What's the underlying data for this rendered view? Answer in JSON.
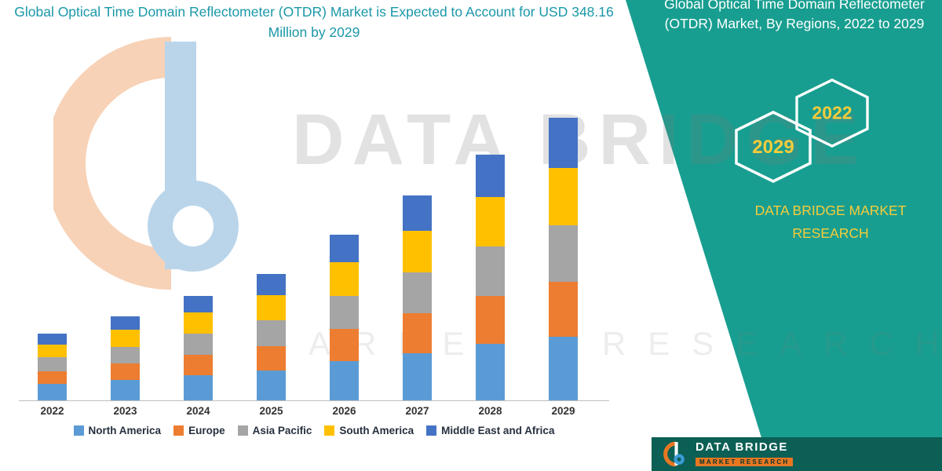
{
  "header": {
    "title": "Global Optical Time Domain Reflectometer (OTDR) Market is Expected to Account for USD 348.16 Million by 2029"
  },
  "panel": {
    "title": "Global Optical Time Domain Reflectometer (OTDR) Market, By Regions, 2022 to 2029",
    "hexagons": [
      {
        "year": "2029"
      },
      {
        "year": "2022"
      }
    ],
    "brand": "DATA BRIDGE MARKET RESEARCH",
    "colors": {
      "panel_bg": "#189E90",
      "footer_bg": "#0B5F55",
      "year_text": "#F5CC3B",
      "title_text": "#FFFFFF"
    }
  },
  "footer": {
    "brand_name": "DATA BRIDGE",
    "brand_sub": "MARKET RESEARCH"
  },
  "watermark": {
    "line1": "DATA BRIDGE",
    "line2": "MARKET RESEARCH"
  },
  "chart_data": {
    "type": "bar",
    "stacked": true,
    "title": "Global Optical Time Domain Reflectometer (OTDR) Market is Expected to Account for USD 348.16 Million by 2029",
    "unit": "USD Million",
    "categories": [
      "2022",
      "2023",
      "2024",
      "2025",
      "2026",
      "2027",
      "2028",
      "2029"
    ],
    "series": [
      {
        "name": "North America",
        "color": "#5B9BD5",
        "values": [
          20,
          25,
          31,
          37,
          48,
          58,
          70,
          78
        ]
      },
      {
        "name": "Europe",
        "color": "#ED7D31",
        "values": [
          16,
          20,
          25,
          30,
          40,
          49,
          59,
          68
        ]
      },
      {
        "name": "Asia Pacific",
        "color": "#A5A5A5",
        "values": [
          17,
          21,
          26,
          32,
          41,
          51,
          61,
          70
        ]
      },
      {
        "name": "South America",
        "color": "#FFC000",
        "values": [
          16,
          21,
          26,
          31,
          41,
          51,
          61,
          70
        ]
      },
      {
        "name": "Middle East and Africa",
        "color": "#4472C4",
        "values": [
          13,
          17,
          21,
          26,
          34,
          43,
          52,
          62.16
        ]
      }
    ],
    "totals": [
      82,
      104,
      129,
      156,
      204,
      252,
      303,
      348.16
    ],
    "ylim": [
      0,
      360
    ],
    "grid": false,
    "y_axis_labels_visible": false,
    "legend_position": "bottom",
    "title_color": "#1A98A8"
  }
}
